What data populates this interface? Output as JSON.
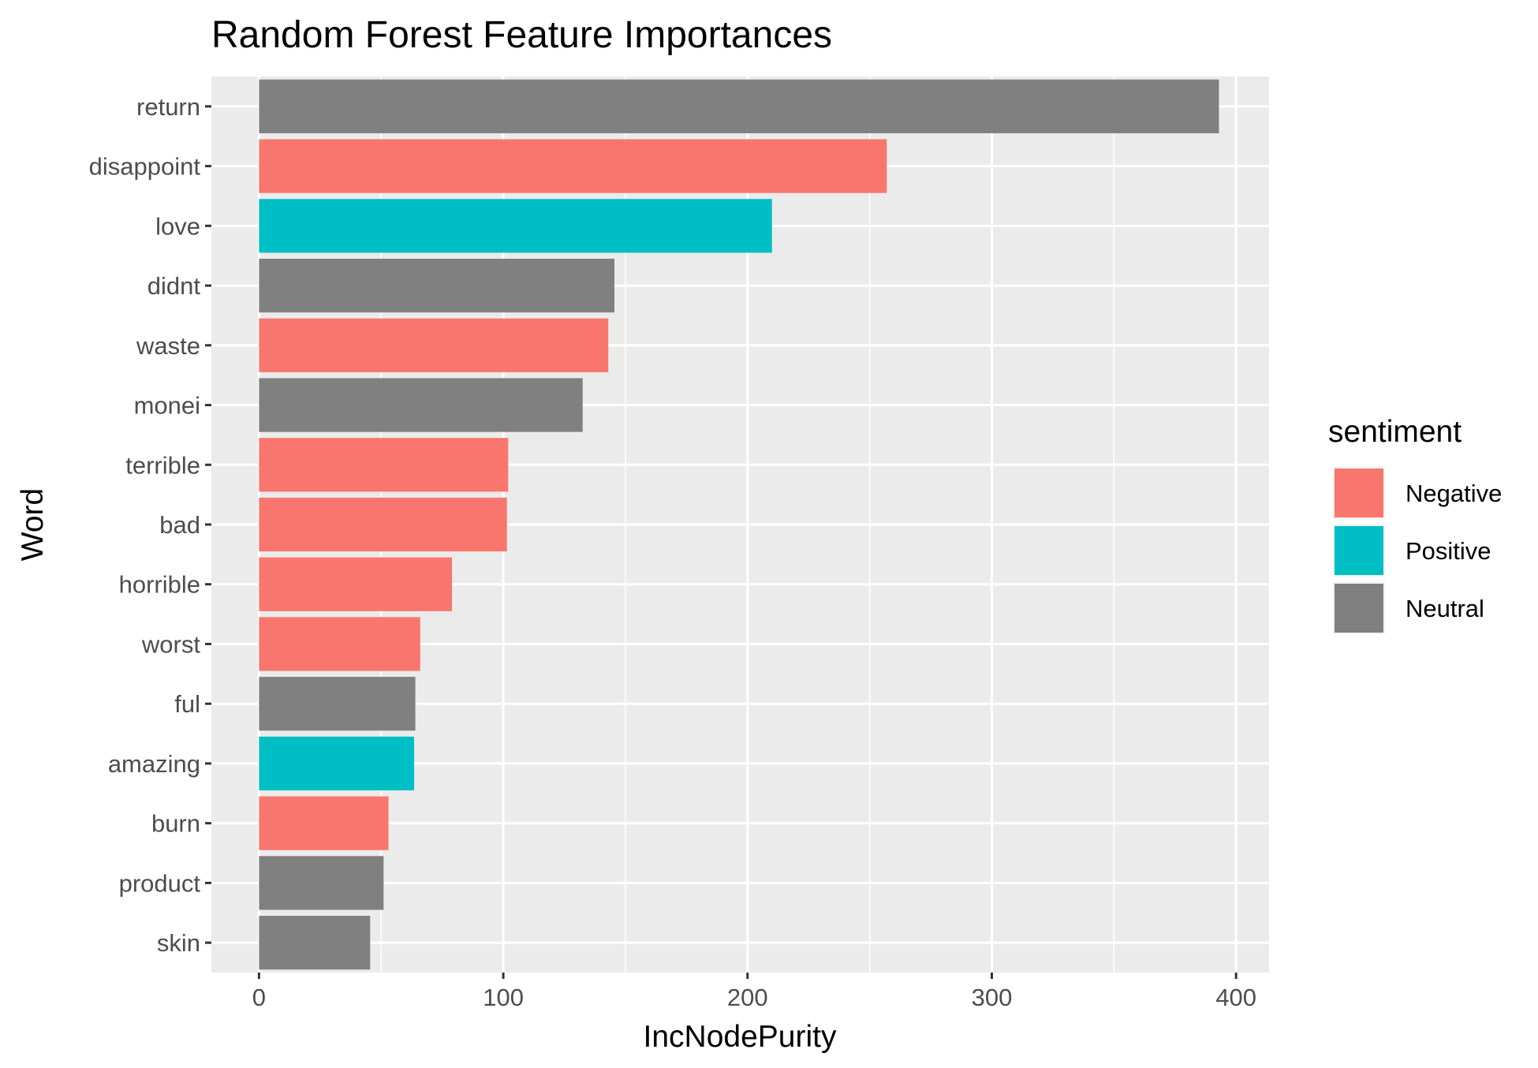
{
  "chart_data": {
    "type": "bar",
    "orientation": "horizontal",
    "title": "Random Forest Feature Importances",
    "xlabel": "IncNodePurity",
    "ylabel": "Word",
    "xlim": [
      -19.5,
      413.5
    ],
    "xticks": [
      0,
      100,
      200,
      300,
      400
    ],
    "grid": true,
    "legend": {
      "title": "sentiment",
      "placement": "right",
      "entries": [
        {
          "name": "Negative",
          "color": "#F8766D"
        },
        {
          "name": "Positive",
          "color": "#00BFC4"
        },
        {
          "name": "Neutral",
          "color": "#808080"
        }
      ]
    },
    "bars": [
      {
        "label": "return",
        "value": 393,
        "sentiment": "Neutral"
      },
      {
        "label": "disappoint",
        "value": 257,
        "sentiment": "Negative"
      },
      {
        "label": "love",
        "value": 210,
        "sentiment": "Positive"
      },
      {
        "label": "didnt",
        "value": 145.5,
        "sentiment": "Neutral"
      },
      {
        "label": "waste",
        "value": 143,
        "sentiment": "Negative"
      },
      {
        "label": "monei",
        "value": 132.5,
        "sentiment": "Neutral"
      },
      {
        "label": "terrible",
        "value": 102,
        "sentiment": "Negative"
      },
      {
        "label": "bad",
        "value": 101.5,
        "sentiment": "Negative"
      },
      {
        "label": "horrible",
        "value": 79,
        "sentiment": "Negative"
      },
      {
        "label": "worst",
        "value": 66,
        "sentiment": "Negative"
      },
      {
        "label": "ful",
        "value": 64,
        "sentiment": "Neutral"
      },
      {
        "label": "amazing",
        "value": 63.5,
        "sentiment": "Positive"
      },
      {
        "label": "burn",
        "value": 53,
        "sentiment": "Negative"
      },
      {
        "label": "product",
        "value": 51,
        "sentiment": "Neutral"
      },
      {
        "label": "skin",
        "value": 45.5,
        "sentiment": "Neutral"
      }
    ]
  }
}
